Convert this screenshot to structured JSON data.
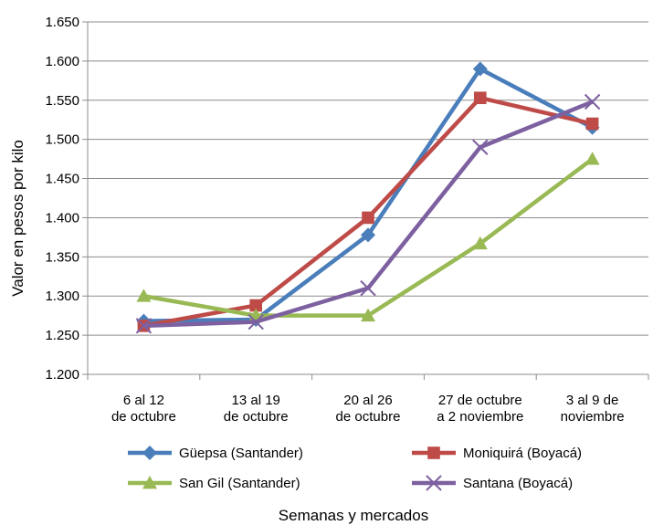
{
  "chart_data": {
    "type": "line",
    "title": "",
    "xlabel": "Semanas y mercados",
    "ylabel": "Valor en pesos por kilo",
    "ylim": [
      1200,
      1650
    ],
    "ytick_step": 50,
    "ytick_labels": [
      "1.200",
      "1.250",
      "1.300",
      "1.350",
      "1.400",
      "1.450",
      "1.500",
      "1.550",
      "1.600",
      "1.650"
    ],
    "grid": "horizontal",
    "legend_position": "bottom",
    "categories": [
      [
        "6 al 12",
        "de octubre"
      ],
      [
        "13 al 19",
        "de octubre"
      ],
      [
        "20 al 26",
        "de octubre"
      ],
      [
        "27 de octubre",
        "a 2 noviembre"
      ],
      [
        "3 al 9 de",
        "noviembre"
      ]
    ],
    "series": [
      {
        "name": "Güepsa (Santander)",
        "values": [
          1268,
          1270,
          1378,
          1590,
          1515
        ],
        "color": "#4a7ebb",
        "marker": "diamond"
      },
      {
        "name": "Moniquirá (Boyacá)",
        "values": [
          1262,
          1288,
          1400,
          1553,
          1520
        ],
        "color": "#be4b48",
        "marker": "square"
      },
      {
        "name": "San Gil (Santander)",
        "values": [
          1300,
          1275,
          1275,
          1367,
          1475
        ],
        "color": "#98b954",
        "marker": "triangle"
      },
      {
        "name": "Santana (Boyacá)",
        "values": [
          1262,
          1267,
          1310,
          1490,
          1548
        ],
        "color": "#7d60a0",
        "marker": "x"
      }
    ]
  }
}
